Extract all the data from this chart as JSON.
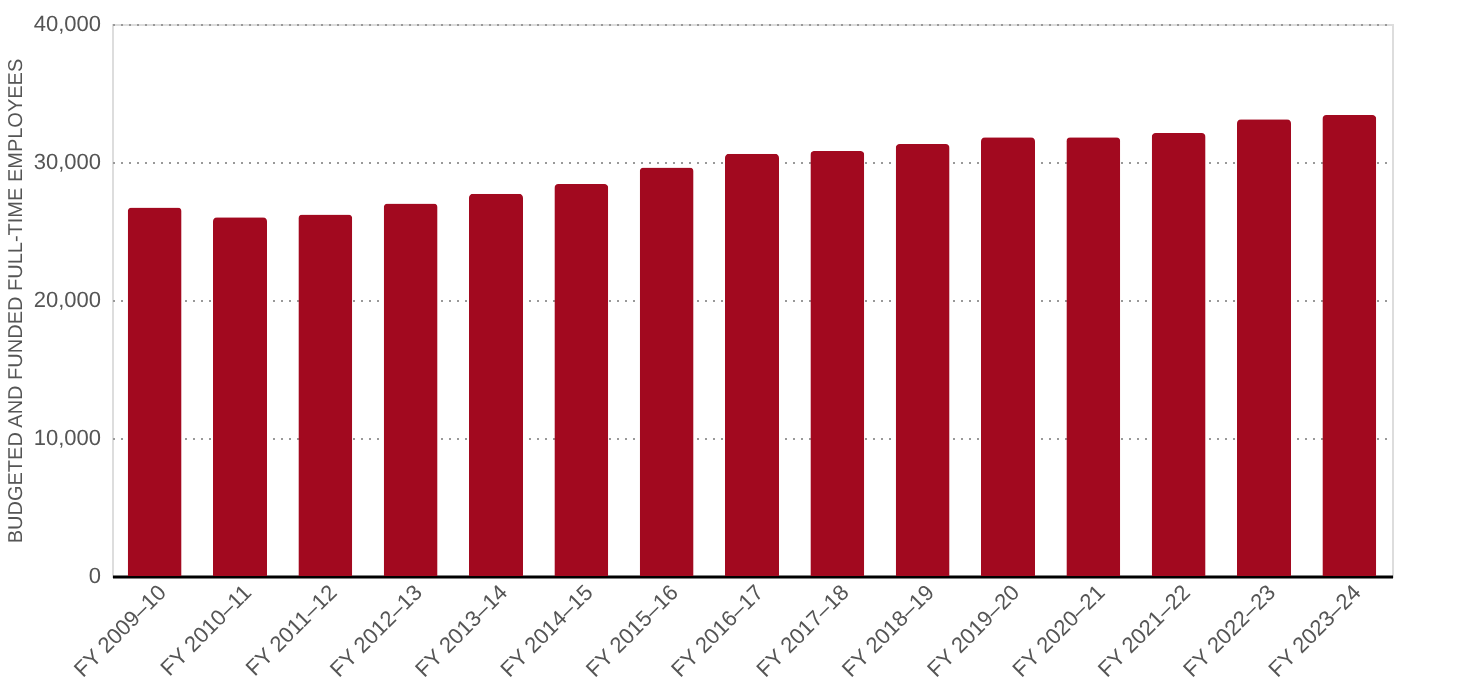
{
  "chart_data": {
    "type": "bar",
    "ylabel": "BUDGETED AND FUNDED FULL-TIME EMPLOYEES",
    "categories": [
      "FY 2009–10",
      "FY 2010–11",
      "FY 2011–12",
      "FY 2012–13",
      "FY 2013–14",
      "FY 2014–15",
      "FY 2015–16",
      "FY 2016–17",
      "FY 2017–18",
      "FY 2018–19",
      "FY 2019–20",
      "FY 2020–21",
      "FY 2021–22",
      "FY 2022–23",
      "FY 2023–24"
    ],
    "values": [
      26700,
      26000,
      26200,
      27000,
      27700,
      28400,
      29600,
      30600,
      30800,
      31300,
      31800,
      31800,
      32100,
      33100,
      33400
    ],
    "color": "#a2091f",
    "ylim": [
      0,
      40000
    ],
    "yticks": [
      {
        "value": 0,
        "label": "0"
      },
      {
        "value": 10000,
        "label": "10,000"
      },
      {
        "value": 20000,
        "label": "20,000"
      },
      {
        "value": 30000,
        "label": "30,000"
      },
      {
        "value": 40000,
        "label": "40,000"
      }
    ],
    "grid": "y"
  }
}
